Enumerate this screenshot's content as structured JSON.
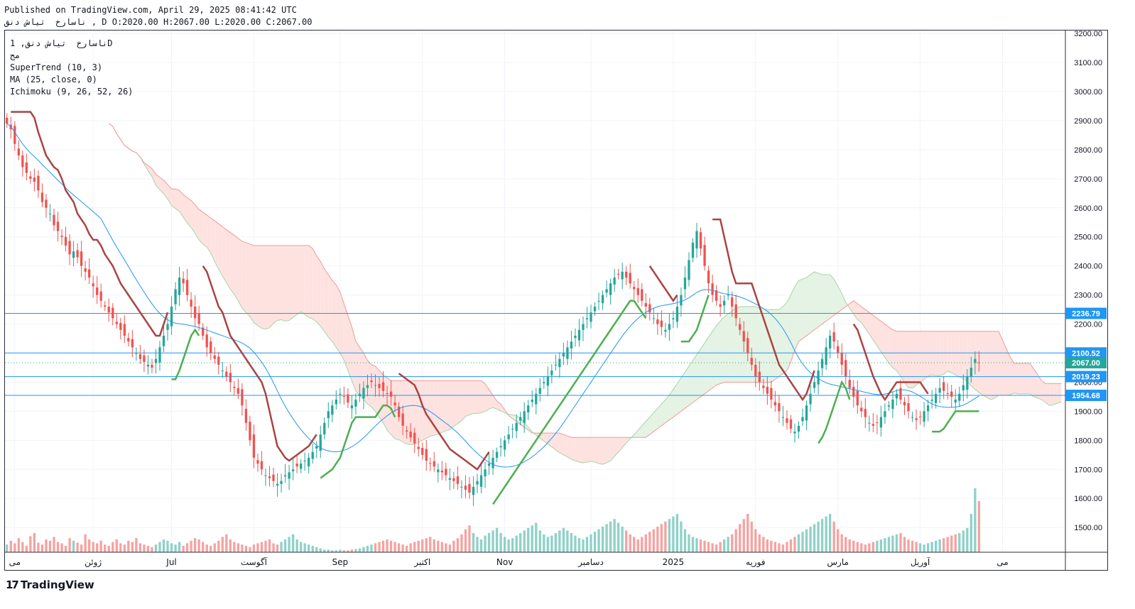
{
  "header": {
    "published": "Published on TradingView.com, April 29, 2025 08:41:42 UTC",
    "ohlc": "ناسارخ  تیاش دنق , D O:2020.00 H:2067.00 L:2020.00 C:2067.00"
  },
  "legend": {
    "symbol": "ناسارخ  تیاش دنق, 1D",
    "exchange": "مج",
    "supertrend": "SuperTrend (10, 3)",
    "ma": "MA (25, close, 0)",
    "ichimoku": "Ichimoku (9, 26, 52, 26)"
  },
  "footer": {
    "logo_mark": "17",
    "logo_text": "TradingView"
  },
  "colors": {
    "up": "#26a69a",
    "down": "#ef5350",
    "ma": "#2196f3",
    "supertrend_down": "#a94442",
    "supertrend_up": "#4caf50",
    "cloud_red": "#fde2e0",
    "cloud_green": "#e4f3e4",
    "hline": "#2196f3"
  },
  "chart_data": {
    "type": "candlestick",
    "y_axis_ticks": [
      3200,
      3100,
      3000,
      2900,
      2800,
      2700,
      2600,
      2500,
      2400,
      2300,
      2200,
      2100,
      2000,
      1900,
      1800,
      1700,
      1600,
      1500
    ],
    "ylim": [
      1415,
      3210
    ],
    "x_axis_labels": [
      "می",
      "ژوئن",
      "Jul",
      "آگوست",
      "Sep",
      "اکتبر",
      "Nov",
      "دسامبر",
      "2025",
      "فوریه",
      "مارس",
      "آوریل",
      "می"
    ],
    "x_label_positions": [
      2,
      22,
      42,
      63,
      85,
      106,
      127,
      149,
      170,
      191,
      212,
      233,
      254
    ],
    "bars_total": 270,
    "horizontal_levels": [
      {
        "value": 2236.79,
        "label": "2236.79",
        "color": "#2196f3"
      },
      {
        "value": 2100.52,
        "label": "2100.52",
        "color": "#2196f3"
      },
      {
        "value": 2019.23,
        "label": "2019.23",
        "color": "#2196f3"
      },
      {
        "value": 1954.68,
        "label": "1954.68",
        "color": "#2196f3"
      }
    ],
    "last_price": {
      "value": 2067.0,
      "label": "2067.00",
      "color": "#26a69a"
    },
    "close_series": [
      2890,
      2870,
      2820,
      2780,
      2740,
      2720,
      2700,
      2690,
      2660,
      2620,
      2600,
      2580,
      2540,
      2520,
      2500,
      2470,
      2440,
      2450,
      2430,
      2400,
      2380,
      2360,
      2330,
      2300,
      2280,
      2260,
      2240,
      2220,
      2200,
      2180,
      2160,
      2140,
      2120,
      2100,
      2080,
      2070,
      2060,
      2050,
      2080,
      2120,
      2160,
      2200,
      2260,
      2320,
      2360,
      2340,
      2300,
      2260,
      2220,
      2200,
      2160,
      2120,
      2100,
      2080,
      2060,
      2040,
      2020,
      2000,
      1980,
      1960,
      1920,
      1860,
      1800,
      1740,
      1720,
      1700,
      1680,
      1670,
      1660,
      1650,
      1660,
      1680,
      1690,
      1700,
      1710,
      1720,
      1730,
      1740,
      1760,
      1780,
      1820,
      1860,
      1900,
      1920,
      1940,
      1960,
      1950,
      1930,
      1920,
      1940,
      1960,
      1980,
      1990,
      2000,
      1990,
      1980,
      1970,
      1960,
      1950,
      1920,
      1880,
      1850,
      1830,
      1810,
      1790,
      1770,
      1750,
      1730,
      1720,
      1710,
      1700,
      1690,
      1680,
      1670,
      1660,
      1650,
      1640,
      1630,
      1620,
      1640,
      1660,
      1680,
      1700,
      1720,
      1740,
      1760,
      1780,
      1800,
      1820,
      1840,
      1860,
      1880,
      1900,
      1920,
      1940,
      1960,
      1980,
      2000,
      2020,
      2040,
      2060,
      2080,
      2100,
      2120,
      2140,
      2160,
      2180,
      2200,
      2220,
      2240,
      2260,
      2280,
      2300,
      2320,
      2340,
      2360,
      2370,
      2380,
      2360,
      2340,
      2320,
      2300,
      2280,
      2260,
      2240,
      2220,
      2200,
      2190,
      2180,
      2200,
      2220,
      2260,
      2300,
      2360,
      2420,
      2480,
      2520,
      2460,
      2400,
      2340,
      2300,
      2280,
      2260,
      2280,
      2300,
      2260,
      2220,
      2180,
      2140,
      2100,
      2060,
      2020,
      2000,
      1980,
      1960,
      1940,
      1920,
      1900,
      1880,
      1860,
      1840,
      1830,
      1850,
      1880,
      1920,
      1960,
      2000,
      2040,
      2080,
      2120,
      2160,
      2140,
      2100,
      2060,
      2020,
      1980,
      1950,
      1920,
      1900,
      1880,
      1860,
      1850,
      1860,
      1880,
      1900,
      1920,
      1940,
      1960,
      1940,
      1920,
      1900,
      1880,
      1870,
      1880,
      1900,
      1920,
      1940,
      1960,
      1980,
      1970,
      1960,
      1950,
      1940,
      1960,
      1990,
      2020,
      2050,
      2080,
      2067
    ],
    "volume_series": [
      12,
      18,
      14,
      22,
      16,
      10,
      25,
      30,
      15,
      12,
      20,
      18,
      24,
      16,
      14,
      10,
      22,
      18,
      15,
      12,
      28,
      20,
      16,
      14,
      18,
      12,
      10,
      16,
      20,
      14,
      12,
      18,
      16,
      22,
      14,
      12,
      10,
      8,
      12,
      16,
      20,
      18,
      14,
      12,
      16,
      10,
      14,
      18,
      22,
      20,
      16,
      12,
      10,
      14,
      18,
      24,
      28,
      20,
      16,
      14,
      12,
      10,
      8,
      12,
      14,
      16,
      18,
      20,
      14,
      12,
      16,
      20,
      24,
      28,
      20,
      16,
      14,
      12,
      10,
      8,
      6,
      4,
      4,
      3,
      3,
      4,
      3,
      3,
      4,
      5,
      6,
      8,
      10,
      12,
      14,
      16,
      18,
      20,
      18,
      16,
      14,
      12,
      10,
      14,
      16,
      18,
      20,
      22,
      24,
      20,
      18,
      16,
      14,
      12,
      18,
      22,
      28,
      36,
      42,
      30,
      24,
      20,
      26,
      30,
      34,
      38,
      30,
      24,
      20,
      22,
      26,
      30,
      34,
      38,
      42,
      46,
      34,
      28,
      24,
      26,
      30,
      34,
      38,
      34,
      30,
      26,
      22,
      20,
      24,
      28,
      32,
      36,
      40,
      44,
      48,
      52,
      46,
      40,
      34,
      28,
      24,
      20,
      24,
      28,
      32,
      36,
      40,
      44,
      48,
      52,
      56,
      60,
      48,
      36,
      28,
      24,
      22,
      20,
      18,
      16,
      14,
      12,
      16,
      20,
      24,
      28,
      36,
      44,
      52,
      60,
      48,
      36,
      28,
      24,
      20,
      18,
      16,
      14,
      12,
      16,
      20,
      24,
      28,
      32,
      36,
      40,
      44,
      48,
      52,
      56,
      60,
      48,
      36,
      28,
      24,
      20,
      18,
      16,
      14,
      12,
      14,
      16,
      18,
      20,
      22,
      24,
      26,
      28,
      30,
      24,
      20,
      18,
      16,
      14,
      12,
      14,
      16,
      18,
      20,
      22,
      24,
      26,
      28,
      30,
      34,
      38,
      60,
      100,
      80,
      66,
      55,
      40
    ]
  }
}
